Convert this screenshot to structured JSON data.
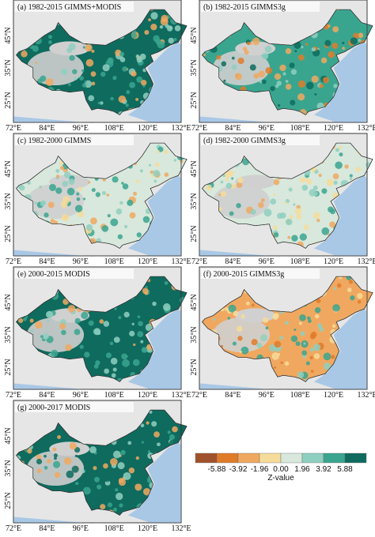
{
  "panels": [
    {
      "title": "(a) 1982-2015 GIMMS+MODIS"
    },
    {
      "title": "(b) 1982-2015 GIMMS3g"
    },
    {
      "title": "(c) 1982-2000 GIMMS"
    },
    {
      "title": "(d) 1982-2000 GIMMS3g"
    },
    {
      "title": "(e) 2000-2015 MODIS"
    },
    {
      "title": "(f) 2000-2015 GIMMS3g"
    },
    {
      "title": "(g) 2000-2017 MODIS"
    }
  ],
  "lat_ticks": [
    "45°N",
    "35°N",
    "25°N"
  ],
  "lon_ticks": [
    "72°E",
    "84°E",
    "96°E",
    "108°E",
    "120°E",
    "132°E"
  ],
  "colorbar": {
    "labels": [
      "-5.88",
      "-3.92",
      "-1.96",
      "0.00",
      "1.96",
      "3.92",
      "5.88"
    ],
    "title": "Z-value"
  }
}
